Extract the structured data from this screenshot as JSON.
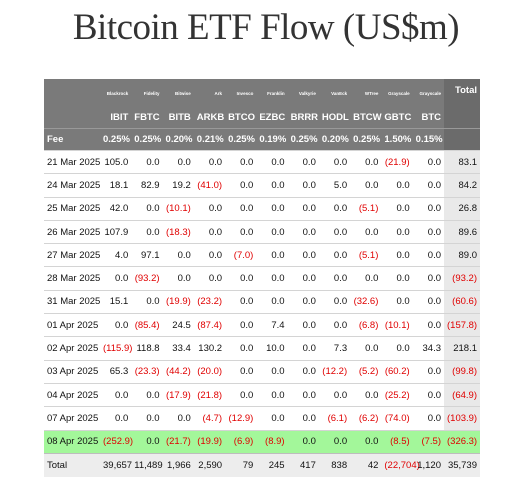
{
  "title": "Bitcoin ETF Flow (US$m)",
  "chart_data": {
    "type": "table",
    "title": "Bitcoin ETF Flow (US$m)",
    "issuers": [
      "Blackrock",
      "Fidelity",
      "Bitwise",
      "Ark",
      "Invesco",
      "Franklin",
      "Valkyrie",
      "VanEck",
      "WTree",
      "Grayscale",
      "Grayscale"
    ],
    "tickers": [
      "IBIT",
      "FBTC",
      "BITB",
      "ARKB",
      "BTCO",
      "EZBC",
      "BRRR",
      "HODL",
      "BTCW",
      "GBTC",
      "BTC"
    ],
    "total_header": "Total",
    "fee_label": "Fee",
    "fees": [
      "0.25%",
      "0.25%",
      "0.20%",
      "0.21%",
      "0.25%",
      "0.19%",
      "0.25%",
      "0.20%",
      "0.25%",
      "1.50%",
      "0.15%"
    ],
    "rows": [
      {
        "date": "21 Mar 2025",
        "values": [
          "105.0",
          "0.0",
          "0.0",
          "0.0",
          "0.0",
          "0.0",
          "0.0",
          "0.0",
          "0.0",
          "(21.9)",
          "0.0"
        ],
        "total": "83.1"
      },
      {
        "date": "24 Mar 2025",
        "values": [
          "18.1",
          "82.9",
          "19.2",
          "(41.0)",
          "0.0",
          "0.0",
          "0.0",
          "5.0",
          "0.0",
          "0.0",
          "0.0"
        ],
        "total": "84.2"
      },
      {
        "date": "25 Mar 2025",
        "values": [
          "42.0",
          "0.0",
          "(10.1)",
          "0.0",
          "0.0",
          "0.0",
          "0.0",
          "0.0",
          "(5.1)",
          "0.0",
          "0.0"
        ],
        "total": "26.8"
      },
      {
        "date": "26 Mar 2025",
        "values": [
          "107.9",
          "0.0",
          "(18.3)",
          "0.0",
          "0.0",
          "0.0",
          "0.0",
          "0.0",
          "0.0",
          "0.0",
          "0.0"
        ],
        "total": "89.6"
      },
      {
        "date": "27 Mar 2025",
        "values": [
          "4.0",
          "97.1",
          "0.0",
          "0.0",
          "(7.0)",
          "0.0",
          "0.0",
          "0.0",
          "(5.1)",
          "0.0",
          "0.0"
        ],
        "total": "89.0"
      },
      {
        "date": "28 Mar 2025",
        "values": [
          "0.0",
          "(93.2)",
          "0.0",
          "0.0",
          "0.0",
          "0.0",
          "0.0",
          "0.0",
          "0.0",
          "0.0",
          "0.0"
        ],
        "total": "(93.2)"
      },
      {
        "date": "31 Mar 2025",
        "values": [
          "15.1",
          "0.0",
          "(19.9)",
          "(23.2)",
          "0.0",
          "0.0",
          "0.0",
          "0.0",
          "(32.6)",
          "0.0",
          "0.0"
        ],
        "total": "(60.6)"
      },
      {
        "date": "01 Apr 2025",
        "values": [
          "0.0",
          "(85.4)",
          "24.5",
          "(87.4)",
          "0.0",
          "7.4",
          "0.0",
          "0.0",
          "(6.8)",
          "(10.1)",
          "0.0"
        ],
        "total": "(157.8)"
      },
      {
        "date": "02 Apr 2025",
        "values": [
          "(115.9)",
          "118.8",
          "33.4",
          "130.2",
          "0.0",
          "10.0",
          "0.0",
          "7.3",
          "0.0",
          "0.0",
          "34.3"
        ],
        "total": "218.1"
      },
      {
        "date": "03 Apr 2025",
        "values": [
          "65.3",
          "(23.3)",
          "(44.2)",
          "(20.0)",
          "0.0",
          "0.0",
          "0.0",
          "(12.2)",
          "(5.2)",
          "(60.2)",
          "0.0"
        ],
        "total": "(99.8)"
      },
      {
        "date": "04 Apr 2025",
        "values": [
          "0.0",
          "0.0",
          "(17.9)",
          "(21.8)",
          "0.0",
          "0.0",
          "0.0",
          "0.0",
          "0.0",
          "(25.2)",
          "0.0"
        ],
        "total": "(64.9)"
      },
      {
        "date": "07 Apr 2025",
        "values": [
          "0.0",
          "0.0",
          "0.0",
          "(4.7)",
          "(12.9)",
          "0.0",
          "0.0",
          "(6.1)",
          "(6.2)",
          "(74.0)",
          "0.0"
        ],
        "total": "(103.9)"
      },
      {
        "date": "08 Apr 2025",
        "values": [
          "(252.9)",
          "0.0",
          "(21.7)",
          "(19.9)",
          "(6.9)",
          "(8.9)",
          "0.0",
          "0.0",
          "0.0",
          "(8.5)",
          "(7.5)"
        ],
        "total": "(326.3)",
        "highlight": true
      }
    ],
    "total_row": {
      "label": "Total",
      "values": [
        "39,657",
        "11,489",
        "1,966",
        "2,590",
        "79",
        "245",
        "417",
        "838",
        "42",
        "(22,704)",
        "1,120"
      ],
      "total": "35,739"
    },
    "colors": {
      "header_bg": "#7a7a7a",
      "highlight_row": "#a3f79a",
      "negative": "#e00000",
      "total_column_bg": "#e9e9e9"
    }
  }
}
